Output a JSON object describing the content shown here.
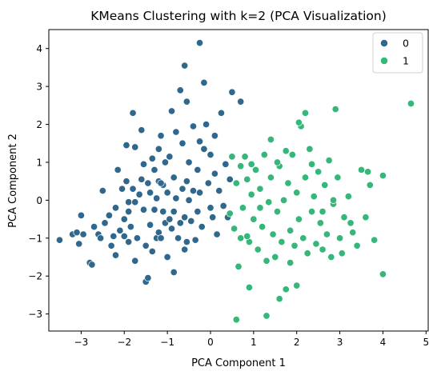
{
  "chart_data": {
    "type": "scatter",
    "title": "KMeans Clustering with k=2 (PCA Visualization)",
    "xlabel": "PCA Component 1",
    "ylabel": "PCA Component 2",
    "xlim": [
      -3.75,
      5.05
    ],
    "ylim": [
      -3.45,
      4.5
    ],
    "xticks": [
      -3,
      -2,
      -1,
      0,
      1,
      2,
      3,
      4,
      5
    ],
    "yticks": [
      -3,
      -2,
      -1,
      0,
      1,
      2,
      3,
      4
    ],
    "grid": false,
    "legend": {
      "placement": "top-right"
    },
    "series": [
      {
        "name": "0",
        "color": "#30688d",
        "points": [
          [
            -3.5,
            -1.05
          ],
          [
            -3.2,
            -0.9
          ],
          [
            -3.1,
            -0.85
          ],
          [
            -3.05,
            -1.15
          ],
          [
            -3.0,
            -0.4
          ],
          [
            -2.95,
            -0.9
          ],
          [
            -2.8,
            -1.65
          ],
          [
            -2.75,
            -1.7
          ],
          [
            -2.7,
            -0.7
          ],
          [
            -2.6,
            -0.9
          ],
          [
            -2.55,
            -1.0
          ],
          [
            -2.5,
            0.25
          ],
          [
            -2.45,
            -0.6
          ],
          [
            -2.3,
            -1.2
          ],
          [
            -2.25,
            -0.95
          ],
          [
            -2.2,
            -1.45
          ],
          [
            -2.2,
            -0.2
          ],
          [
            -2.15,
            0.8
          ],
          [
            -2.1,
            -0.8
          ],
          [
            -2.05,
            0.3
          ],
          [
            -2.0,
            -0.95
          ],
          [
            -2.0,
            -0.5
          ],
          [
            -1.95,
            0.5
          ],
          [
            -1.95,
            1.45
          ],
          [
            -1.9,
            -0.05
          ],
          [
            -1.9,
            -0.3
          ],
          [
            -1.85,
            -0.7
          ],
          [
            -1.8,
            2.3
          ],
          [
            -1.8,
            0.3
          ],
          [
            -1.75,
            1.4
          ],
          [
            -1.75,
            -1.6
          ],
          [
            -1.7,
            -1.0
          ],
          [
            -1.65,
            0.15
          ],
          [
            -1.6,
            1.85
          ],
          [
            -1.55,
            0.95
          ],
          [
            -1.55,
            -0.25
          ],
          [
            -1.5,
            -2.15
          ],
          [
            -1.5,
            -1.2
          ],
          [
            -1.45,
            0.45
          ],
          [
            -1.45,
            -2.05
          ],
          [
            -1.4,
            0.2
          ],
          [
            -1.4,
            -0.65
          ],
          [
            -1.35,
            1.1
          ],
          [
            -1.3,
            -0.25
          ],
          [
            -1.3,
            0.8
          ],
          [
            -1.25,
            0.05
          ],
          [
            -1.25,
            -1.0
          ],
          [
            -1.2,
            0.5
          ],
          [
            -1.2,
            -0.85
          ],
          [
            -1.2,
            1.35
          ],
          [
            -1.15,
            -1.0
          ],
          [
            -1.15,
            1.7
          ],
          [
            -1.1,
            0.4
          ],
          [
            -1.1,
            -0.3
          ],
          [
            -1.05,
            -0.6
          ],
          [
            -1.05,
            1.0
          ],
          [
            -1.0,
            -1.5
          ],
          [
            -1.0,
            0.2
          ],
          [
            -0.95,
            -0.5
          ],
          [
            -0.95,
            1.15
          ],
          [
            -0.9,
            2.35
          ],
          [
            -0.9,
            -0.75
          ],
          [
            -0.85,
            0.6
          ],
          [
            -0.85,
            -0.3
          ],
          [
            -0.8,
            1.8
          ],
          [
            -0.8,
            0.05
          ],
          [
            -0.75,
            -1.0
          ],
          [
            -0.7,
            -0.6
          ],
          [
            -0.65,
            0.3
          ],
          [
            -0.65,
            1.5
          ],
          [
            -0.6,
            -0.45
          ],
          [
            -0.6,
            -1.3
          ],
          [
            -0.55,
            0.5
          ],
          [
            -0.55,
            2.6
          ],
          [
            -0.5,
            0.0
          ],
          [
            -0.5,
            1.0
          ],
          [
            -0.45,
            -0.55
          ],
          [
            -0.4,
            0.25
          ],
          [
            -0.4,
            1.95
          ],
          [
            -0.35,
            -1.05
          ],
          [
            -0.3,
            -0.3
          ],
          [
            -0.3,
            0.8
          ],
          [
            -0.25,
            0.2
          ],
          [
            -0.25,
            1.55
          ],
          [
            -0.2,
            -0.7
          ],
          [
            -0.15,
            3.1
          ],
          [
            -0.1,
            2.0
          ],
          [
            -0.05,
            0.45
          ],
          [
            0.0,
            -0.2
          ],
          [
            0.0,
            1.2
          ],
          [
            0.05,
            -0.45
          ],
          [
            0.1,
            0.7
          ],
          [
            0.15,
            -0.9
          ],
          [
            0.2,
            0.25
          ],
          [
            0.25,
            2.3
          ],
          [
            0.3,
            -0.15
          ],
          [
            0.35,
            0.95
          ],
          [
            0.4,
            -0.45
          ],
          [
            0.45,
            0.55
          ],
          [
            -0.25,
            4.15
          ],
          [
            0.5,
            2.85
          ],
          [
            0.7,
            2.6
          ],
          [
            -0.15,
            1.35
          ],
          [
            -0.6,
            3.55
          ],
          [
            -1.75,
            -0.05
          ],
          [
            -1.15,
            0.45
          ],
          [
            -0.55,
            -1.1
          ],
          [
            0.1,
            1.7
          ],
          [
            -1.35,
            -1.35
          ],
          [
            -0.85,
            -1.9
          ],
          [
            -0.7,
            2.9
          ],
          [
            -1.9,
            -1.1
          ],
          [
            -2.35,
            -0.4
          ],
          [
            -1.6,
            0.55
          ]
        ]
      },
      {
        "name": "1",
        "color": "#35b779",
        "points": [
          [
            0.45,
            -0.35
          ],
          [
            0.5,
            1.15
          ],
          [
            0.55,
            -0.75
          ],
          [
            0.6,
            0.45
          ],
          [
            0.65,
            -1.75
          ],
          [
            0.7,
            -1.0
          ],
          [
            0.7,
            0.9
          ],
          [
            0.75,
            -0.2
          ],
          [
            0.8,
            1.15
          ],
          [
            0.85,
            0.55
          ],
          [
            0.9,
            -1.1
          ],
          [
            0.9,
            -2.3
          ],
          [
            0.95,
            0.15
          ],
          [
            1.0,
            -0.5
          ],
          [
            1.05,
            0.8
          ],
          [
            1.1,
            -1.3
          ],
          [
            1.15,
            0.3
          ],
          [
            1.2,
            -0.7
          ],
          [
            1.25,
            1.2
          ],
          [
            1.3,
            -1.6
          ],
          [
            1.35,
            -0.05
          ],
          [
            1.4,
            0.6
          ],
          [
            1.45,
            -0.9
          ],
          [
            1.5,
            -1.5
          ],
          [
            1.55,
            -0.3
          ],
          [
            1.6,
            0.9
          ],
          [
            1.65,
            -1.1
          ],
          [
            1.7,
            0.0
          ],
          [
            1.75,
            -2.35
          ],
          [
            1.8,
            0.45
          ],
          [
            1.85,
            -0.8
          ],
          [
            1.9,
            1.2
          ],
          [
            1.95,
            -1.2
          ],
          [
            2.0,
            0.2
          ],
          [
            2.05,
            -0.5
          ],
          [
            2.1,
            1.95
          ],
          [
            2.15,
            -1.0
          ],
          [
            2.2,
            0.6
          ],
          [
            2.25,
            -1.4
          ],
          [
            2.3,
            1.35
          ],
          [
            2.35,
            -0.3
          ],
          [
            2.4,
            0.1
          ],
          [
            2.45,
            -1.15
          ],
          [
            2.5,
            0.75
          ],
          [
            2.55,
            -0.6
          ],
          [
            2.6,
            -1.3
          ],
          [
            2.65,
            0.4
          ],
          [
            2.7,
            -0.9
          ],
          [
            2.75,
            1.05
          ],
          [
            2.8,
            -1.5
          ],
          [
            2.85,
            -0.1
          ],
          [
            2.9,
            2.4
          ],
          [
            2.95,
            0.6
          ],
          [
            3.0,
            -1.0
          ],
          [
            3.05,
            -1.4
          ],
          [
            3.1,
            -0.45
          ],
          [
            3.2,
            0.1
          ],
          [
            3.3,
            -0.85
          ],
          [
            3.4,
            -1.2
          ],
          [
            3.5,
            0.8
          ],
          [
            3.6,
            -0.45
          ],
          [
            3.7,
            0.4
          ],
          [
            3.8,
            -1.05
          ],
          [
            4.0,
            0.65
          ],
          [
            4.0,
            -1.95
          ],
          [
            4.65,
            2.55
          ],
          [
            0.6,
            -3.15
          ],
          [
            1.3,
            -3.05
          ],
          [
            2.0,
            -2.25
          ],
          [
            1.6,
            -2.6
          ],
          [
            2.2,
            2.3
          ],
          [
            2.05,
            2.05
          ],
          [
            1.4,
            1.6
          ],
          [
            2.35,
            0.95
          ],
          [
            1.15,
            -0.2
          ],
          [
            0.85,
            -0.95
          ],
          [
            1.55,
            1.0
          ],
          [
            1.75,
            1.3
          ],
          [
            2.85,
            0.0
          ],
          [
            3.25,
            -0.6
          ],
          [
            0.95,
            0.95
          ],
          [
            1.85,
            -1.65
          ],
          [
            2.6,
            -0.3
          ],
          [
            3.65,
            0.75
          ]
        ]
      }
    ]
  }
}
